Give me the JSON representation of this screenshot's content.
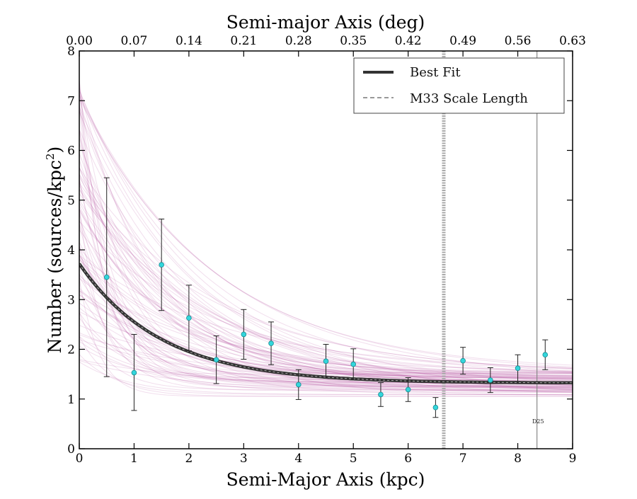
{
  "chart_data": {
    "type": "scatter",
    "title": "",
    "xlabel": "Semi-Major Axis (kpc)",
    "ylabel": "Number (sources/kpc²)",
    "ylabel_main": "Number (sources/kpc",
    "ylabel_sup": "2",
    "ylabel_close": ")",
    "top_xlabel": "Semi-major Axis (deg)",
    "xlim": [
      0,
      9
    ],
    "ylim": [
      0,
      8
    ],
    "x_ticks": [
      "0",
      "1",
      "2",
      "3",
      "4",
      "5",
      "6",
      "7",
      "8",
      "9"
    ],
    "y_ticks": [
      "0",
      "1",
      "2",
      "3",
      "4",
      "5",
      "6",
      "7",
      "8"
    ],
    "top_ticks": [
      "0.00",
      "0.07",
      "0.14",
      "0.21",
      "0.28",
      "0.35",
      "0.42",
      "0.49",
      "0.56",
      "0.63"
    ],
    "grid": false,
    "legend": {
      "placement": "top-right",
      "entries": [
        {
          "label": "Best Fit",
          "style": "solid",
          "color": "#333333"
        },
        {
          "label": "M33 Scale Length",
          "style": "dashed",
          "color": "#999999"
        }
      ]
    },
    "data_points": [
      {
        "x": 0.5,
        "y": 3.45,
        "lo": 1.45,
        "hi": 5.45
      },
      {
        "x": 1.0,
        "y": 1.53,
        "lo": 0.77,
        "hi": 2.3
      },
      {
        "x": 1.5,
        "y": 3.7,
        "lo": 2.78,
        "hi": 4.62
      },
      {
        "x": 2.0,
        "y": 2.63,
        "lo": 1.97,
        "hi": 3.29
      },
      {
        "x": 2.5,
        "y": 1.79,
        "lo": 1.31,
        "hi": 2.27
      },
      {
        "x": 3.0,
        "y": 2.3,
        "lo": 1.8,
        "hi": 2.8
      },
      {
        "x": 3.5,
        "y": 2.12,
        "lo": 1.69,
        "hi": 2.55
      },
      {
        "x": 4.0,
        "y": 1.29,
        "lo": 0.99,
        "hi": 1.59
      },
      {
        "x": 4.5,
        "y": 1.76,
        "lo": 1.42,
        "hi": 2.1
      },
      {
        "x": 5.0,
        "y": 1.7,
        "lo": 1.39,
        "hi": 2.01
      },
      {
        "x": 5.5,
        "y": 1.09,
        "lo": 0.85,
        "hi": 1.33
      },
      {
        "x": 6.0,
        "y": 1.19,
        "lo": 0.95,
        "hi": 1.43
      },
      {
        "x": 6.5,
        "y": 0.83,
        "lo": 0.63,
        "hi": 1.03
      },
      {
        "x": 7.0,
        "y": 1.77,
        "lo": 1.5,
        "hi": 2.04
      },
      {
        "x": 7.5,
        "y": 1.38,
        "lo": 1.13,
        "hi": 1.63
      },
      {
        "x": 8.0,
        "y": 1.62,
        "lo": 1.35,
        "hi": 1.89
      },
      {
        "x": 8.5,
        "y": 1.89,
        "lo": 1.59,
        "hi": 2.19
      }
    ],
    "best_fit": {
      "model": "y = a*exp(-x/h) + c",
      "a": 2.4,
      "h": 1.5,
      "c": 1.32
    },
    "vertical_lines": [
      {
        "x": 6.65,
        "style": "dashed",
        "label": "M33 Scale Length"
      },
      {
        "x": 8.35,
        "style": "solid",
        "label": "D25"
      }
    ],
    "annotations": [
      {
        "text": "D25",
        "x": 8.35,
        "y": 0.5
      }
    ],
    "colors": {
      "points": "#33d6dc",
      "errorbars": "#222222",
      "fit": "#333333",
      "samples": "#b04a9a",
      "vline": "#888888"
    }
  }
}
